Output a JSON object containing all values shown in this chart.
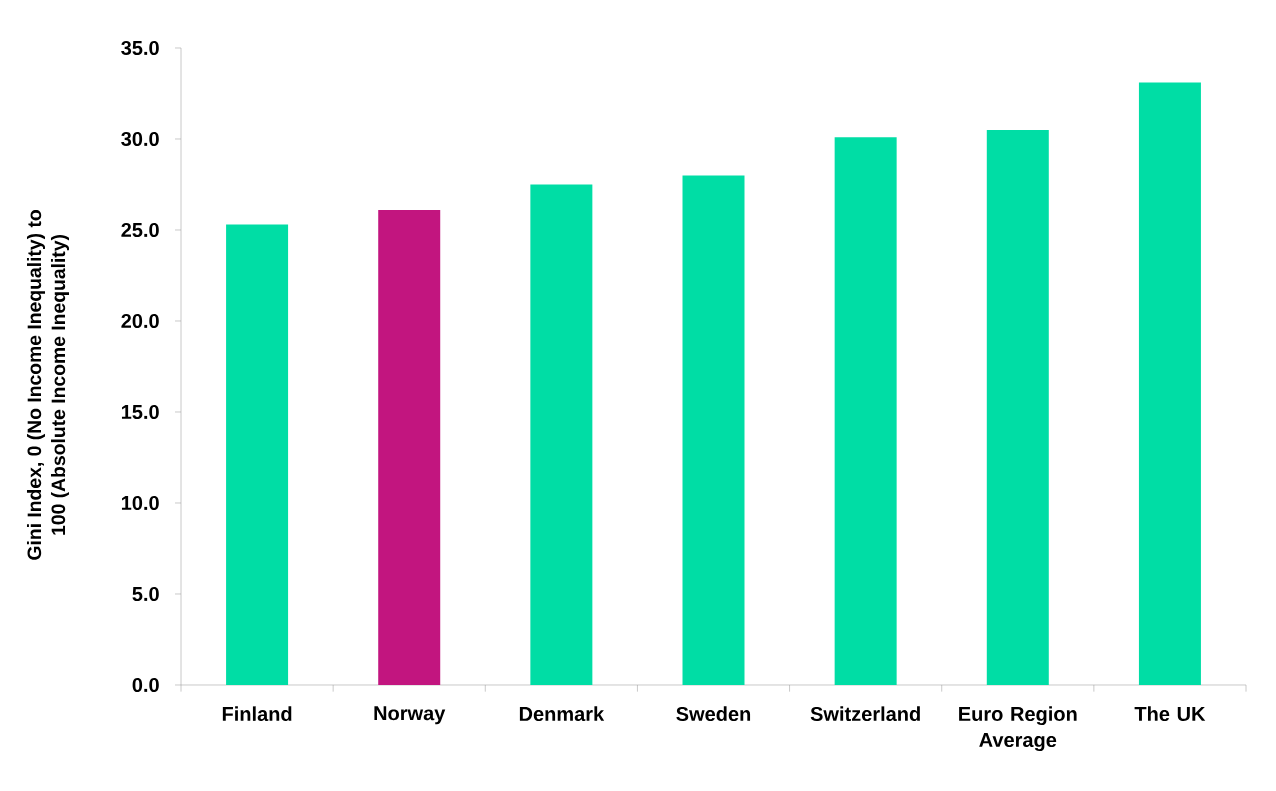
{
  "chart_data": {
    "type": "bar",
    "ylabel": "Gini Index, 0 (No Income Inequality) to 100 (Absolute Income Inequality)",
    "categories": [
      "Finland",
      "Norway",
      "Denmark",
      "Sweden",
      "Switzerland",
      "Euro Region Average",
      "The UK"
    ],
    "values": [
      25.3,
      26.1,
      27.5,
      28.0,
      30.1,
      30.5,
      33.1
    ],
    "colors": [
      "#00dda5",
      "#c2157f",
      "#00dda5",
      "#00dda5",
      "#00dda5",
      "#00dda5",
      "#00dda5"
    ],
    "ylim": [
      0,
      35
    ],
    "yticks": [
      {
        "value": 0,
        "label": "0.0"
      },
      {
        "value": 5,
        "label": "5.0"
      },
      {
        "value": 10,
        "label": "10.0"
      },
      {
        "value": 15,
        "label": "15.0"
      },
      {
        "value": 20,
        "label": "20.0"
      },
      {
        "value": 25,
        "label": "25.0"
      },
      {
        "value": 30,
        "label": "30.0"
      },
      {
        "value": 35,
        "label": "35.0"
      }
    ]
  }
}
